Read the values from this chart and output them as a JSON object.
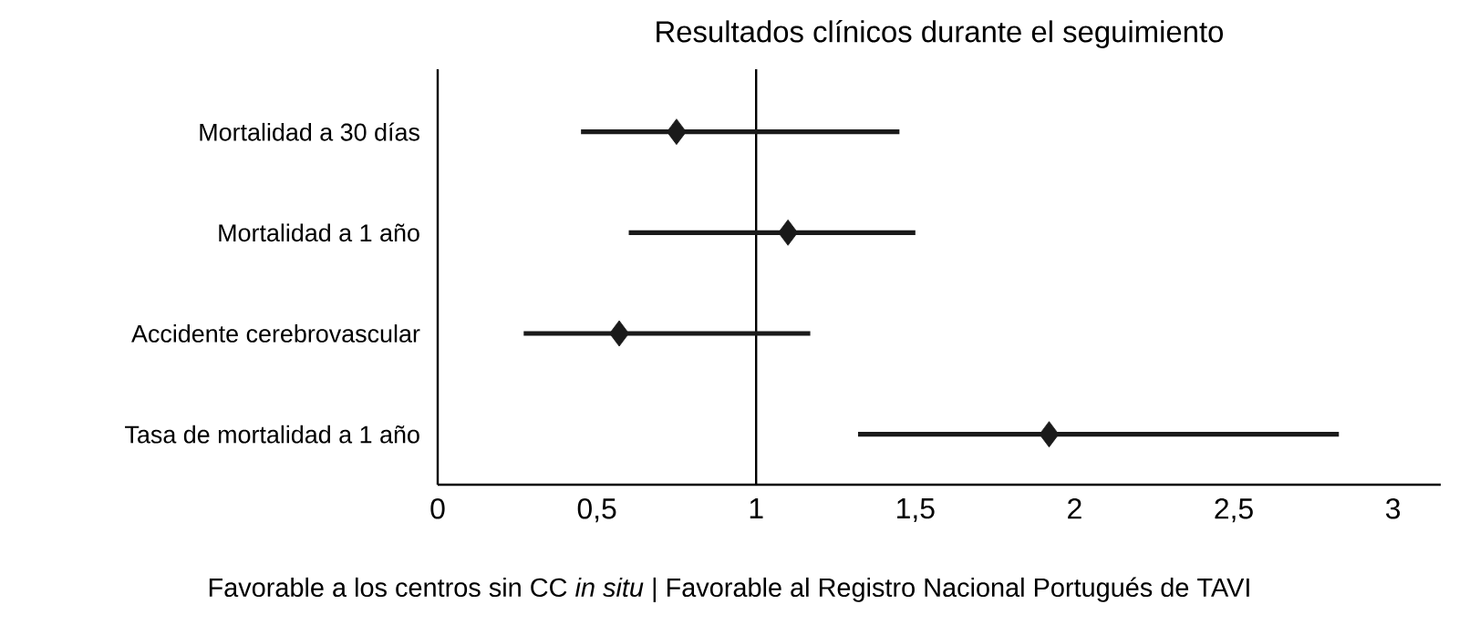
{
  "chart_data": {
    "type": "scatter",
    "orientation": "horizontal",
    "title": "Resultados clínicos durante el seguimiento",
    "categories": [
      "Mortalidad a 30 días",
      "Mortalidad a 1 año",
      "Accidente cerebrovascular",
      "Tasa de mortalidad a 1 año"
    ],
    "values": [
      0.75,
      1.1,
      0.57,
      1.92
    ],
    "errors": [
      [
        0.45,
        1.45
      ],
      [
        0.6,
        1.5
      ],
      [
        0.27,
        1.17
      ],
      [
        1.32,
        2.83
      ]
    ],
    "color": "#1a1a1a",
    "marker": "diamond",
    "xlim": [
      0,
      3.15
    ],
    "xticks": [
      0,
      {
        "value": 0.5,
        "label": "0,5"
      },
      1,
      {
        "value": 1.5,
        "label": "1,5"
      },
      2,
      {
        "value": 2.5,
        "label": "2,5"
      },
      3
    ],
    "ref_lines": [
      {
        "axis": "x",
        "value": 1,
        "color": "#000000"
      }
    ],
    "annotations": [
      "Favorable a los centros sin CC *in situ* | Favorable al Registro Nacional Portugués de TAVI"
    ]
  }
}
